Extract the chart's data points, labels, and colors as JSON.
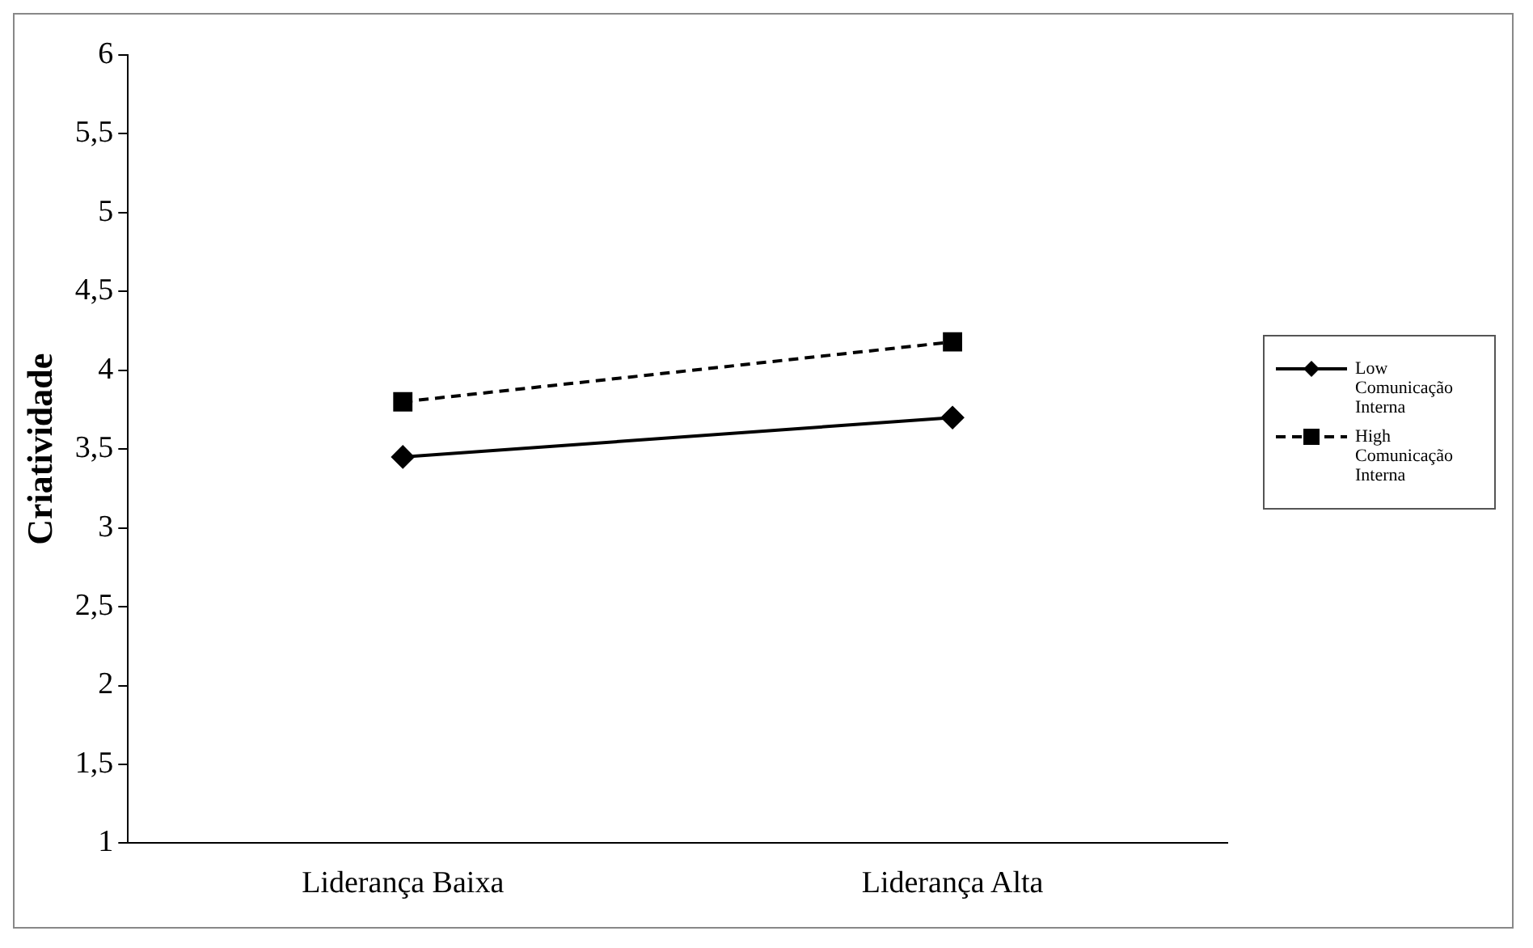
{
  "chart_data": {
    "type": "line",
    "ylabel": "Criatividade",
    "categories": [
      "Liderança Baixa",
      "Liderança Alta"
    ],
    "series": [
      {
        "name": "Low Comunicação Interna",
        "color": "#000000",
        "values": [
          3.45,
          3.7
        ],
        "marker": "diamond",
        "line_style": "solid"
      },
      {
        "name": "High Comunicação Interna",
        "color": "#000000",
        "values": [
          3.8,
          4.18
        ],
        "marker": "square",
        "line_style": "dashed"
      }
    ],
    "ylim": [
      1,
      6
    ],
    "yticks": [
      1,
      {
        "value": 1.5,
        "label": "1,5"
      },
      2,
      {
        "value": 2.5,
        "label": "2,5"
      },
      3,
      {
        "value": 3.5,
        "label": "3,5"
      },
      4,
      {
        "value": 4.5,
        "label": "4,5"
      },
      5,
      {
        "value": 5.5,
        "label": "5,5"
      },
      6
    ],
    "grid": false,
    "legend": "right"
  }
}
